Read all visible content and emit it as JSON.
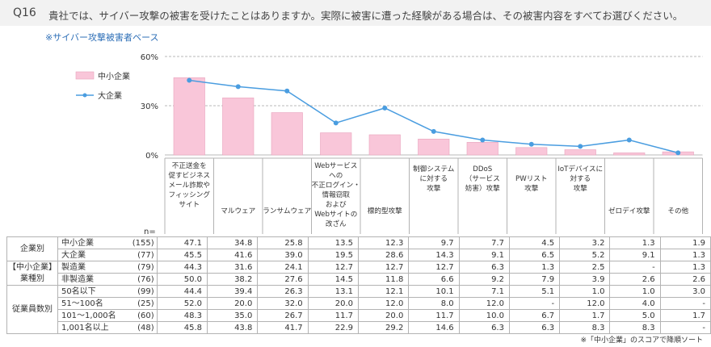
{
  "header": {
    "qnum": "Q16",
    "question": "貴社では、サイバー攻撃の被害を受けたことはありますか。実際に被害に遭った経験がある場合は、その被害内容をすべてお選びください。"
  },
  "base_note": "※サイバー攻撃被害者ベース",
  "n_label": "n=",
  "footnote": "※「中小企業」のスコアで降順ソート",
  "colors": {
    "bar": "#f9c6d9",
    "bar_stroke": "#e8a3bd",
    "line": "#4a9de0",
    "grid": "#b8b8b8"
  },
  "chart_data": {
    "type": "bar",
    "categories": [
      "不正送金を\n促すビジネス\nメール詐欺や\nフィッシング\nサイト",
      "マルウェア",
      "ランサムウェア",
      "Webサービス\nへの\n不正ログイン・\n情報窃取\nおよび\nWebサイトの\n改ざん",
      "標的型攻撃",
      "制御システム\nに対する\n攻撃",
      "DDoS\n（サービス\n妨害）攻撃",
      "PWリスト\n攻撃",
      "IoTデバイスに\n対する\n攻撃",
      "ゼロデイ攻撃",
      "その他"
    ],
    "series": [
      {
        "name": "中小企業",
        "type": "bar",
        "values": [
          47.1,
          34.8,
          25.8,
          13.5,
          12.3,
          9.7,
          7.7,
          4.5,
          3.2,
          1.3,
          1.9
        ]
      },
      {
        "name": "大企業",
        "type": "line",
        "values": [
          45.5,
          41.6,
          39.0,
          19.5,
          28.6,
          14.3,
          9.1,
          6.5,
          5.2,
          9.1,
          1.3
        ]
      }
    ],
    "yticks": [
      "0%",
      "30%",
      "60%"
    ],
    "ylim": [
      0,
      60
    ],
    "legend_position": "top-left"
  },
  "table": {
    "groups": [
      {
        "name": "企業別",
        "rows": [
          {
            "label": "中小企業",
            "n": "(155)",
            "values": [
              "47.1",
              "34.8",
              "25.8",
              "13.5",
              "12.3",
              "9.7",
              "7.7",
              "4.5",
              "3.2",
              "1.3",
              "1.9"
            ]
          },
          {
            "label": "大企業",
            "n": "(77)",
            "values": [
              "45.5",
              "41.6",
              "39.0",
              "19.5",
              "28.6",
              "14.3",
              "9.1",
              "6.5",
              "5.2",
              "9.1",
              "1.3"
            ]
          }
        ]
      },
      {
        "name": "【中小企業】\n業種別",
        "rows": [
          {
            "label": "製造業",
            "n": "(79)",
            "values": [
              "44.3",
              "31.6",
              "24.1",
              "12.7",
              "12.7",
              "12.7",
              "6.3",
              "1.3",
              "2.5",
              "-",
              "1.3"
            ]
          },
          {
            "label": "非製造業",
            "n": "(76)",
            "values": [
              "50.0",
              "38.2",
              "27.6",
              "14.5",
              "11.8",
              "6.6",
              "9.2",
              "7.9",
              "3.9",
              "2.6",
              "2.6"
            ]
          }
        ]
      },
      {
        "name": "従業員数別",
        "rows": [
          {
            "label": "50名以下",
            "n": "(99)",
            "values": [
              "44.4",
              "39.4",
              "26.3",
              "13.1",
              "12.1",
              "10.1",
              "7.1",
              "5.1",
              "1.0",
              "1.0",
              "3.0"
            ]
          },
          {
            "label": "51～100名",
            "n": "(25)",
            "values": [
              "52.0",
              "20.0",
              "32.0",
              "20.0",
              "12.0",
              "8.0",
              "12.0",
              "-",
              "12.0",
              "4.0",
              "-"
            ]
          },
          {
            "label": "101～1,000名",
            "n": "(60)",
            "values": [
              "48.3",
              "35.0",
              "26.7",
              "11.7",
              "20.0",
              "11.7",
              "10.0",
              "6.7",
              "1.7",
              "5.0",
              "1.7"
            ]
          },
          {
            "label": "1,001名以上",
            "n": "(48)",
            "values": [
              "45.8",
              "43.8",
              "41.7",
              "22.9",
              "29.2",
              "14.6",
              "6.3",
              "6.3",
              "8.3",
              "8.3",
              "-"
            ]
          }
        ]
      }
    ]
  }
}
